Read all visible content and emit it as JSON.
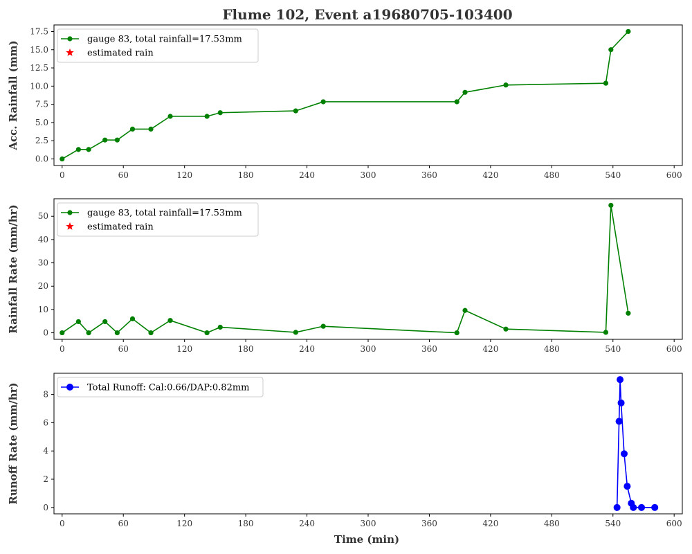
{
  "figure": {
    "title": "Flume 102, Event a19680705-103400",
    "xlabel": "Time (min)"
  },
  "chart_data": [
    {
      "type": "line",
      "ylabel": "Acc. Rainfall (mm)",
      "xlim": [
        -8,
        608
      ],
      "ylim": [
        -0.9,
        18.4
      ],
      "xticks": [
        0,
        60,
        120,
        180,
        240,
        300,
        360,
        420,
        480,
        540,
        600
      ],
      "yticks": [
        0.0,
        2.5,
        5.0,
        7.5,
        10.0,
        12.5,
        15.0,
        17.5
      ],
      "ytick_labels": [
        "0.0",
        "2.5",
        "5.0",
        "7.5",
        "10.0",
        "12.5",
        "15.0",
        "17.5"
      ],
      "grid": false,
      "legend_position": "top-left",
      "series": [
        {
          "name": "gauge 83, total rainfall=17.53mm",
          "color": "#008000",
          "marker": "circle",
          "x": [
            0,
            16,
            26,
            42,
            54,
            69,
            87,
            106,
            142,
            155,
            229,
            256,
            387,
            395,
            435,
            533,
            538,
            555
          ],
          "y": [
            0.0,
            1.3,
            1.3,
            2.6,
            2.6,
            4.1,
            4.1,
            5.85,
            5.85,
            6.35,
            6.6,
            7.85,
            7.85,
            9.15,
            10.15,
            10.4,
            15.0,
            17.5
          ]
        },
        {
          "name": "estimated rain",
          "color": "#ff0000",
          "marker": "star",
          "x": [],
          "y": []
        }
      ]
    },
    {
      "type": "line",
      "ylabel": "Rainfall Rate (mm/hr)",
      "xlim": [
        -8,
        608
      ],
      "ylim": [
        -2.8,
        57.5
      ],
      "xticks": [
        0,
        60,
        120,
        180,
        240,
        300,
        360,
        420,
        480,
        540,
        600
      ],
      "yticks": [
        0,
        10,
        20,
        30,
        40,
        50
      ],
      "ytick_labels": [
        "0",
        "10",
        "20",
        "30",
        "40",
        "50"
      ],
      "grid": false,
      "legend_position": "top-left",
      "series": [
        {
          "name": "gauge 83, total rainfall=17.53mm",
          "color": "#008000",
          "marker": "circle",
          "x": [
            0,
            16,
            26,
            42,
            54,
            69,
            87,
            106,
            142,
            155,
            229,
            256,
            387,
            395,
            435,
            533,
            538,
            555
          ],
          "y": [
            0,
            4.8,
            0,
            4.8,
            0,
            6.0,
            0,
            5.3,
            0,
            2.4,
            0.2,
            2.8,
            0,
            9.6,
            1.6,
            0.2,
            54.7,
            8.4
          ]
        },
        {
          "name": "estimated rain",
          "color": "#ff0000",
          "marker": "star",
          "x": [],
          "y": []
        }
      ]
    },
    {
      "type": "line",
      "ylabel": "Runoff Rate (mm/hr)",
      "xlim": [
        -8,
        608
      ],
      "ylim": [
        -0.45,
        9.5
      ],
      "xticks": [
        0,
        60,
        120,
        180,
        240,
        300,
        360,
        420,
        480,
        540,
        600
      ],
      "yticks": [
        0,
        2,
        4,
        6,
        8
      ],
      "ytick_labels": [
        "0",
        "2",
        "4",
        "6",
        "8"
      ],
      "grid": false,
      "legend_position": "top-left",
      "series": [
        {
          "name": "Total Runoff: Cal:0.66/DAP:0.82mm",
          "color": "#0000ff",
          "marker": "circle",
          "x": [
            544,
            546,
            547,
            548,
            551,
            554,
            558,
            560,
            568,
            581
          ],
          "y": [
            0.0,
            6.1,
            9.05,
            7.4,
            3.8,
            1.5,
            0.3,
            0.0,
            0.0,
            0.0
          ]
        }
      ]
    }
  ]
}
